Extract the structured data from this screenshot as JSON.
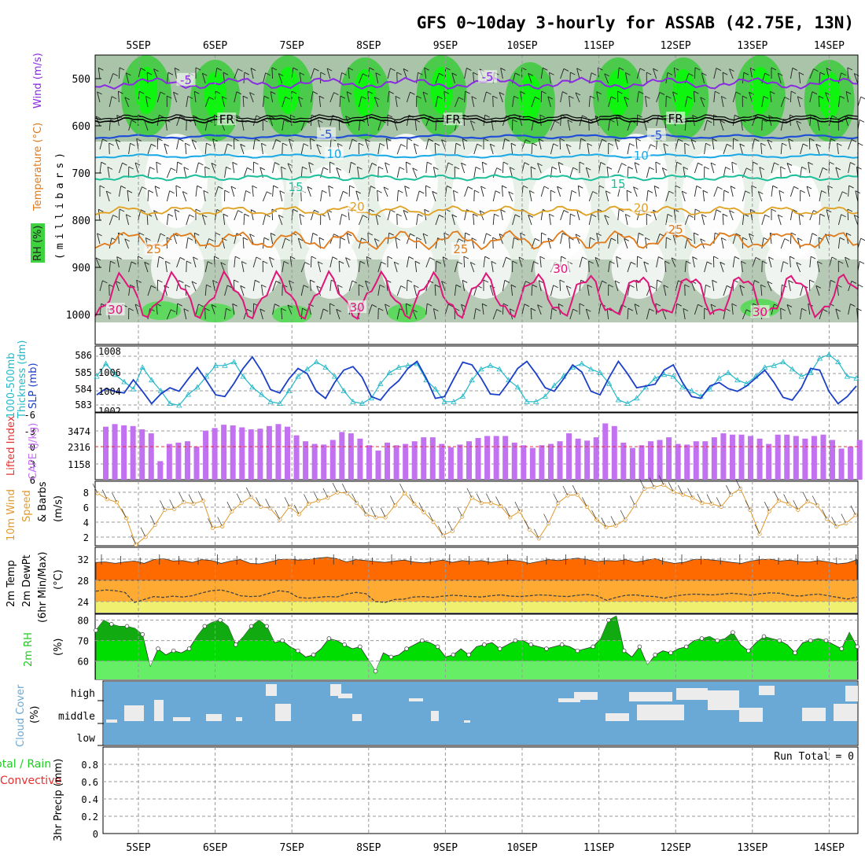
{
  "title": "GFS 0~10day 3-hourly for ASSAB (42.75E, 13N)",
  "days": [
    "5SEP",
    "6SEP",
    "7SEP",
    "8SEP",
    "9SEP",
    "10SEP",
    "11SEP",
    "12SEP",
    "13SEP",
    "14SEP"
  ],
  "colors": {
    "purple": "#8a2be2",
    "blue": "#1f4fd8",
    "cyan": "#18a9e6",
    "teal": "#1bbf99",
    "gold": "#e0a020",
    "orange": "#e07a1a",
    "magenta": "#e0157a",
    "cape": "#c271f0",
    "rh2m": "#22cc22",
    "cloud": "#6aa8d6",
    "grid": "#999999",
    "tmax": "#cc3300",
    "thk": "#22b8c8",
    "slp": "#1a3fc8",
    "wind10": "#e09a30"
  },
  "panels": {
    "upper": {
      "label_rh": "RH (%)",
      "label_temp": "Temperature (°C)",
      "label_wind": "Wind (m/s)",
      "label_units": "(millibars)",
      "yticks": [
        "500",
        "600",
        "700",
        "800",
        "900",
        "1000"
      ],
      "contour_labels": [
        {
          "text": "-5",
          "color": "purple",
          "day": 0.62,
          "p": 503
        },
        {
          "text": "-5",
          "color": "purple",
          "day": 4.55,
          "p": 497
        },
        {
          "text": "FR",
          "color": "black",
          "day": 1.15,
          "p": 587
        },
        {
          "text": "FR",
          "color": "black",
          "day": 4.1,
          "p": 587
        },
        {
          "text": "FR",
          "color": "black",
          "day": 7.0,
          "p": 585
        },
        {
          "text": "-5",
          "color": "blue",
          "day": 2.45,
          "p": 618
        },
        {
          "text": "-5",
          "color": "blue",
          "day": 6.75,
          "p": 620
        },
        {
          "text": "10",
          "color": "cyan",
          "day": 2.55,
          "p": 660
        },
        {
          "text": "10",
          "color": "cyan",
          "day": 6.55,
          "p": 663
        },
        {
          "text": "15",
          "color": "teal",
          "day": 2.05,
          "p": 730
        },
        {
          "text": "15",
          "color": "teal",
          "day": 6.25,
          "p": 723
        },
        {
          "text": "20",
          "color": "gold",
          "day": 2.85,
          "p": 772
        },
        {
          "text": "20",
          "color": "gold",
          "day": 6.55,
          "p": 774
        },
        {
          "text": "25",
          "color": "orange",
          "day": 0.2,
          "p": 862
        },
        {
          "text": "25",
          "color": "orange",
          "day": 4.2,
          "p": 862
        },
        {
          "text": "25",
          "color": "orange",
          "day": 7.0,
          "p": 820
        },
        {
          "text": "30",
          "color": "magenta",
          "day": -0.3,
          "p": 990
        },
        {
          "text": "30",
          "color": "magenta",
          "day": 2.85,
          "p": 985
        },
        {
          "text": "30",
          "color": "magenta",
          "day": 5.5,
          "p": 903
        },
        {
          "text": "30",
          "color": "magenta",
          "day": 8.1,
          "p": 995
        }
      ]
    },
    "slp": {
      "label1": "1000-500mb",
      "label2": "Thickness (dm)",
      "label3": "SLP (mb)",
      "left_ticks": [
        "586",
        "585",
        "584",
        "583"
      ],
      "right_ticks": [
        "1008",
        "1006",
        "1004",
        "1002"
      ]
    },
    "cape": {
      "label1": "Lifted Index",
      "label2": "CAPE (J/kg)",
      "left_ticks": [
        "-6",
        "-3",
        "0",
        "3",
        "6"
      ],
      "right_ticks": [
        "3474",
        "2316",
        "1158"
      ]
    },
    "wind10": {
      "label1": "10m Wind",
      "label2": "Speed",
      "label3": "& Barbs",
      "label4": "(m/s)",
      "yticks": [
        "8",
        "6",
        "4",
        "2"
      ]
    },
    "temp2m": {
      "label1": "2m Temp",
      "label2": "2m DewPt",
      "label3": "(6hr Min/Max)",
      "label4": "(°C)",
      "yticks": [
        "32",
        "28",
        "24"
      ]
    },
    "rh2m": {
      "label1": "2m RH",
      "label2": "(%)",
      "yticks": [
        "80",
        "70",
        "60"
      ]
    },
    "cloud": {
      "label1": "Cloud Cover",
      "label2": "(%)",
      "levels": [
        "high",
        "middle",
        "low"
      ]
    },
    "precip": {
      "label1": "Total / Rain",
      "label2": "Convective",
      "label3": "3hr Precip (mm)",
      "run_total": "Run Total = 0",
      "yticks": [
        "0.8",
        "0.6",
        "0.4",
        "0.2",
        "0"
      ]
    }
  },
  "chart_data": [
    {
      "type": "line",
      "name": "upper-air cross-section",
      "y_units": "millibars",
      "ylim": [
        1000,
        450
      ],
      "x": "time (days from 5SEP)",
      "isotherms_C": [
        -5,
        "FR",
        5,
        10,
        15,
        20,
        25,
        30
      ]
    },
    {
      "type": "line",
      "name": "thickness_slp",
      "series": [
        {
          "name": "SLP (mb)",
          "values": [
            1003.8,
            1004.5,
            1004.2,
            1004.0,
            1005.5,
            1004.2,
            1002.8,
            1003.9,
            1004.6,
            1004.2,
            1005.6,
            1006.9,
            1005.4,
            1003.8,
            1003.6,
            1005.1,
            1006.8,
            1008.1,
            1006.5,
            1004.4,
            1004.0,
            1005.6,
            1006.8,
            1006.2,
            1004.2,
            1003.4,
            1005.2,
            1006.6,
            1007.0,
            1005.8,
            1003.6,
            1003.2,
            1004.5,
            1005.4,
            1006.8,
            1007.6,
            1005.7,
            1003.4,
            1003.6,
            1005.6,
            1007.5,
            1007.2,
            1005.7,
            1003.9,
            1003.8,
            1005.2,
            1006.8,
            1007.6,
            1006.2,
            1004.6,
            1004.2,
            1005.6,
            1007.2,
            1006.4,
            1004.2,
            1003.8,
            1005.8,
            1007.6,
            1006.2,
            1004.6,
            1004.8,
            1005.0,
            1006.6,
            1007.2,
            1005.2,
            1003.6,
            1003.4,
            1004.8,
            1005.2,
            1004.5,
            1004.2,
            1004.8,
            1005.7,
            1006.6,
            1005.2,
            1003.5,
            1003.2,
            1004.6,
            1006.8,
            1006.6,
            1004.2,
            1002.8,
            1003.6,
            1004.8
          ]
        },
        {
          "name": "Thickness (dm)",
          "values": [
            584.6,
            585.3,
            584.7,
            584.3,
            583.9,
            585.1,
            584.4,
            583.8,
            583.1,
            583.0,
            583.6,
            584.0,
            584.6,
            585.2,
            585.2,
            585.4,
            584.6,
            584.0,
            583.6,
            583.2,
            583.1,
            583.8,
            584.6,
            585.0,
            585.4,
            585.1,
            584.6,
            583.8,
            583.2,
            583.1,
            583.4,
            584.2,
            584.8,
            585.1,
            585.2,
            585.3,
            584.4,
            583.9,
            583.2,
            583.2,
            583.5,
            584.4,
            585.0,
            585.2,
            585.0,
            584.4,
            584.0,
            583.2,
            583.2,
            583.5,
            584.1,
            584.6,
            585.1,
            585.3,
            585.0,
            584.8,
            584.2,
            583.3,
            583.1,
            583.4,
            584.0,
            584.5,
            584.7,
            584.6,
            584.0,
            583.8,
            583.5,
            583.9,
            584.5,
            584.8,
            584.4,
            584.2,
            584.6,
            585.1,
            585.2,
            585.4,
            585.0,
            584.6,
            584.8,
            585.6,
            585.8,
            585.4,
            584.6,
            584.5
          ]
        }
      ]
    },
    {
      "type": "bar",
      "name": "CAPE (J/kg)",
      "values": [
        4000,
        4200,
        4100,
        4050,
        3800,
        3500,
        1400,
        2700,
        2800,
        2900,
        2500,
        3700,
        3900,
        4150,
        4100,
        3950,
        3800,
        3850,
        4050,
        4200,
        4000,
        3350,
        2900,
        2700,
        2650,
        3000,
        3600,
        3500,
        3100,
        2600,
        2200,
        2800,
        2600,
        2700,
        2900,
        3200,
        3200,
        2700,
        2450,
        2650,
        2900,
        3150,
        3300,
        3300,
        3300,
        2800,
        2600,
        2400,
        2600,
        2700,
        2900,
        3500,
        3100,
        2950,
        3200,
        4250,
        4050,
        2800,
        2400,
        2600,
        2900,
        3000,
        3200,
        2700,
        2650,
        2900,
        2900,
        3200,
        3500,
        3400,
        3400,
        3300,
        3100,
        2700,
        3400,
        3400,
        3300,
        3100,
        3300,
        3400,
        3000,
        2350,
        2500,
        3000,
        2800
      ],
      "ylim": [
        0,
        4632
      ]
    },
    {
      "type": "line",
      "name": "10m Wind Speed (m/s)",
      "values": [
        7.8,
        7.0,
        6.6,
        4.5,
        1.0,
        2.0,
        3.6,
        5.6,
        5.7,
        6.6,
        6.4,
        6.8,
        3.2,
        3.4,
        5.4,
        6.5,
        7.3,
        6.0,
        5.8,
        4.3,
        6.0,
        5.0,
        6.4,
        6.8,
        7.2,
        7.9,
        7.8,
        6.5,
        5.0,
        4.6,
        4.6,
        6.2,
        7.8,
        6.4,
        5.3,
        4.0,
        2.2,
        2.8,
        4.7,
        7.2,
        6.5,
        6.5,
        6.1,
        4.6,
        5.4,
        3.0,
        1.8,
        3.8,
        6.5,
        7.5,
        7.6,
        6.0,
        4.3,
        3.3,
        3.5,
        4.3,
        6.2,
        8.4,
        8.6,
        8.9,
        8.0,
        7.6,
        7.2,
        6.5,
        6.4,
        6.0,
        7.6,
        8.4,
        5.6,
        2.4,
        5.4,
        6.8,
        6.4,
        5.6,
        6.7,
        6.2,
        4.4,
        3.4,
        3.8,
        4.9
      ],
      "ylim": [
        0,
        9
      ]
    },
    {
      "type": "area",
      "name": "2m Temp (°C)",
      "values": [
        31.2,
        31.3,
        31.0,
        31.3,
        31.5,
        31.0,
        31.8,
        32.0,
        31.5,
        31.6,
        31.2,
        31.8,
        31.6,
        31.0,
        31.5,
        31.8,
        31.0,
        30.9,
        31.3,
        31.8,
        31.9,
        31.7,
        31.8,
        32.1,
        32.3,
        32.0,
        31.3,
        31.8,
        31.6,
        31.4,
        31.2,
        31.5,
        31.7,
        31.3,
        31.1,
        31.4,
        31.7,
        31.2,
        31.6,
        31.4,
        31.6,
        31.2,
        31.5,
        31.7,
        31.5,
        31.0,
        31.4,
        31.8,
        31.6,
        31.9,
        32.1,
        31.8,
        31.4,
        31.6,
        31.5,
        31.8,
        31.3,
        31.6,
        32.0,
        31.4,
        31.0,
        31.2,
        31.8,
        31.9,
        31.7,
        31.5,
        31.2,
        31.0,
        31.5,
        31.8,
        31.9,
        31.5,
        31.7,
        31.4,
        31.3,
        31.6,
        31.3,
        30.9,
        31.1,
        31.8
      ],
      "ylim": [
        22,
        33.5
      ]
    },
    {
      "type": "line",
      "name": "2m DewPt (°C)",
      "values": [
        26.5,
        26.8,
        26.6,
        26.2,
        23.8,
        24.5,
        25.2,
        25.0,
        25.3,
        25.1,
        25.4,
        26.1,
        26.6,
        26.8,
        26.2,
        25.4,
        25.2,
        25.3,
        26.0,
        26.6,
        26.3,
        25.0,
        24.8,
        25.0,
        25.2,
        25.1,
        25.8,
        26.2,
        25.9,
        24.0,
        23.8,
        24.5,
        24.6,
        25.1,
        25.2,
        25.0,
        25.3,
        25.5,
        25.4,
        25.2,
        25.1,
        25.4,
        25.6,
        25.3,
        25.2,
        25.4,
        25.6,
        25.5,
        25.3,
        25.2,
        25.5,
        25.7,
        25.4,
        24.3,
        25.0,
        25.5,
        25.6,
        25.3,
        25.2,
        24.8,
        25.3,
        25.6,
        25.8,
        25.7,
        25.6,
        25.8,
        26.0,
        25.8,
        25.5,
        25.9,
        26.1,
        26.0,
        25.5,
        25.3,
        25.6,
        25.8,
        25.4,
        25.0,
        24.6,
        25.1
      ],
      "ylim": [
        22,
        33.5
      ]
    },
    {
      "type": "area",
      "name": "2m RH (%)",
      "values": [
        75,
        80,
        78,
        77,
        77,
        76,
        73,
        57,
        66,
        63,
        65,
        64,
        66,
        72,
        77,
        79,
        80,
        77,
        68,
        72,
        77,
        80,
        77,
        69,
        70,
        67,
        65,
        62,
        63,
        66,
        71,
        70,
        68,
        66,
        67,
        61,
        55,
        64,
        62,
        63,
        66,
        68,
        70,
        69,
        67,
        62,
        63,
        66,
        63,
        67,
        68,
        69,
        66,
        68,
        70,
        70,
        68,
        67,
        66,
        67,
        68,
        67,
        65,
        66,
        67,
        71,
        80,
        82,
        65,
        62,
        67,
        58,
        63,
        65,
        64,
        66,
        67,
        70,
        71,
        72,
        70,
        71,
        74,
        68,
        65,
        69,
        72,
        71,
        70,
        68,
        64,
        69,
        70,
        71,
        70,
        68,
        66,
        74,
        67
      ],
      "ylim": [
        51,
        84
      ]
    },
    {
      "type": "heatmap",
      "name": "Cloud Cover (%)",
      "y_categories": [
        "high",
        "middle",
        "low"
      ]
    },
    {
      "type": "bar",
      "name": "3hr Precip (mm)",
      "values": [],
      "ylim": [
        0,
        1
      ],
      "annotation": "Run Total = 0"
    }
  ]
}
